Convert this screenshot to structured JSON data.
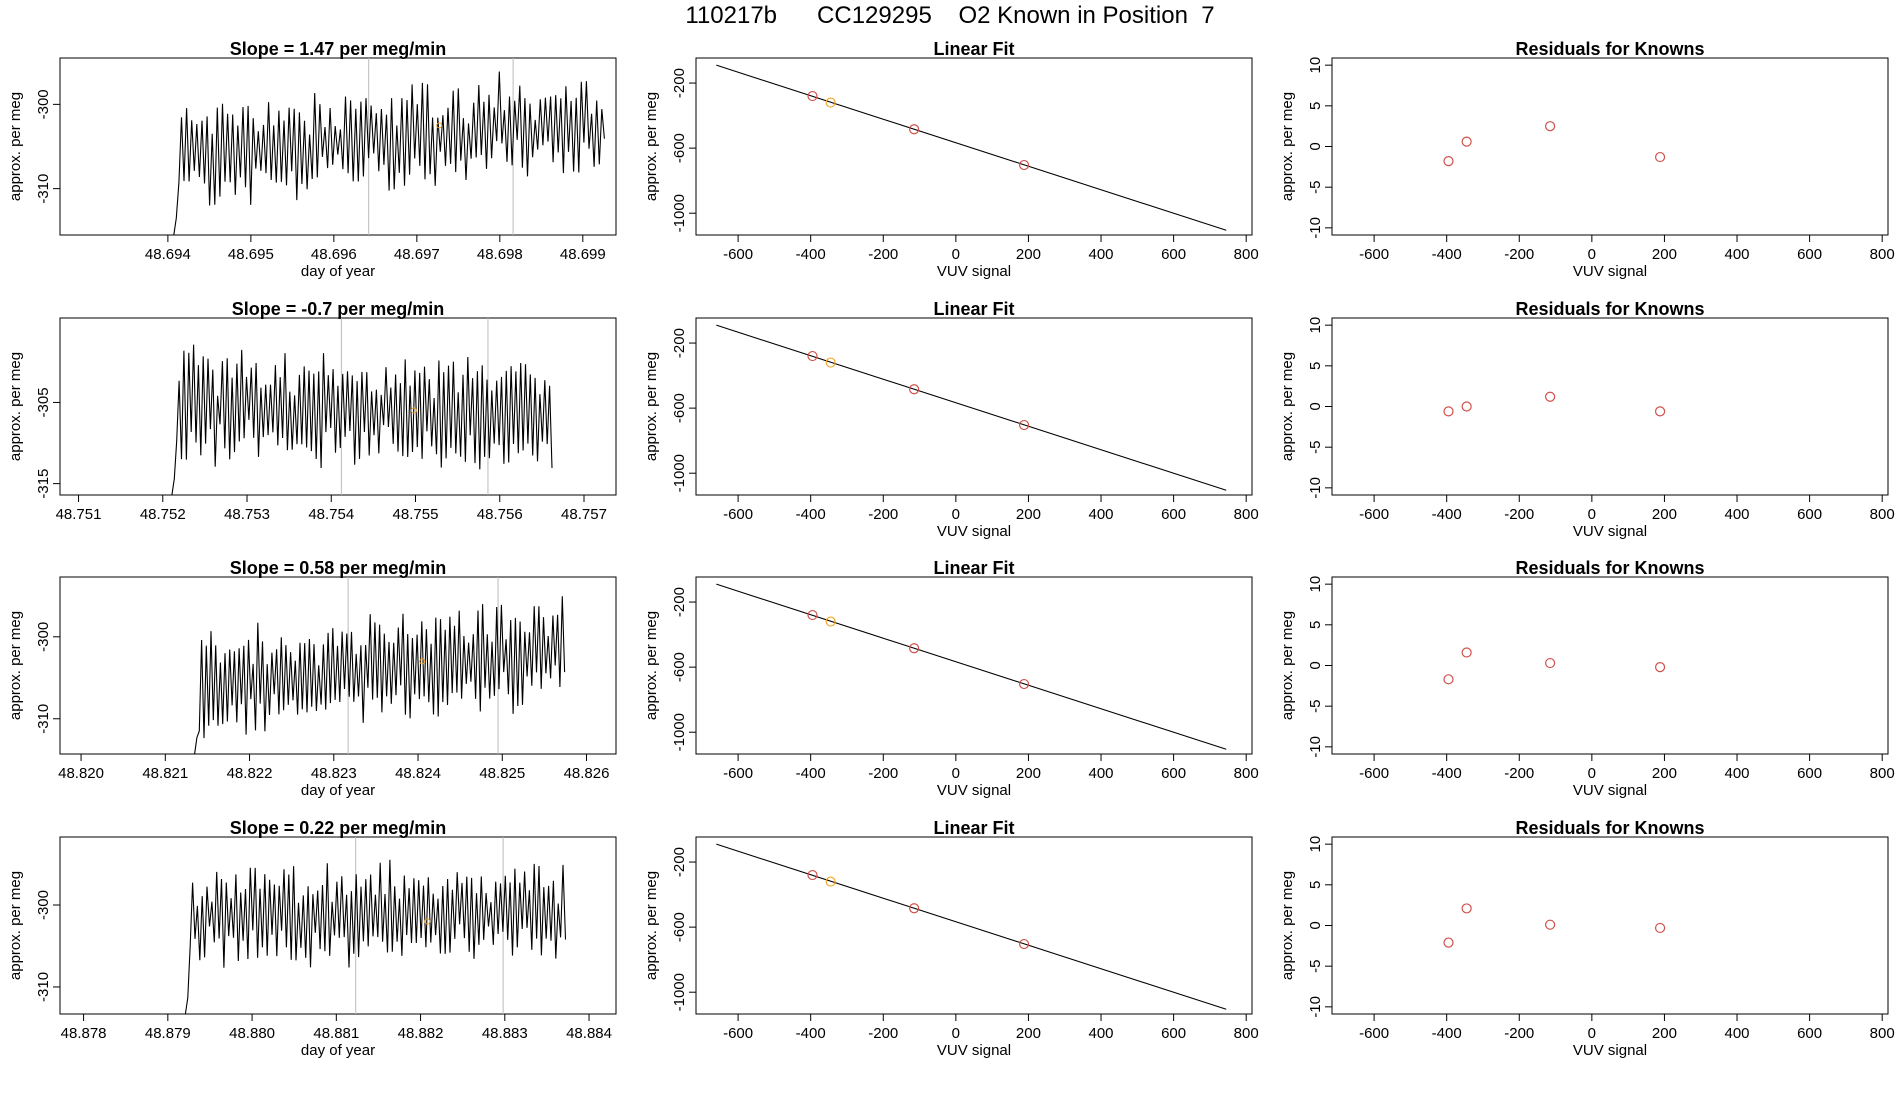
{
  "figure": {
    "title": "110217b      CC129295    O2 Known in Position  7"
  },
  "chart_data": [
    {
      "panel": "timeseries",
      "row": 1,
      "type": "line",
      "title": "Slope =  1.47  per meg/min",
      "xlabel": "day of year",
      "ylabel": "approx. per meg",
      "xlim": [
        48.6927,
        48.6994
      ],
      "ylim": [
        -315.5,
        -294.5
      ],
      "xticks": [
        48.694,
        48.695,
        48.696,
        48.697,
        48.698,
        48.699
      ],
      "xtick_labels": [
        "48.694",
        "48.695",
        "48.696",
        "48.697",
        "48.698",
        "48.699"
      ],
      "yticks": [
        -300,
        -310
      ],
      "ytick_labels": [
        "-300",
        "-310"
      ],
      "vlines": [
        48.69642,
        48.69816
      ],
      "highlight": {
        "x": 48.69727,
        "y": -302.5,
        "color": "#f5a623"
      },
      "series": [
        {
          "color": "#000000",
          "start": 48.69404,
          "end": 48.69926,
          "n": 170,
          "base": -306.0,
          "trend": 4.0,
          "amp": 5.5,
          "seed": 11
        }
      ]
    },
    {
      "panel": "fit",
      "row": 1,
      "type": "scatter",
      "title": "Linear Fit",
      "xlabel": "VUV signal",
      "ylabel": "approx. per meg",
      "xlim": [
        -716,
        816
      ],
      "ylim": [
        -1134,
        -46
      ],
      "xticks": [
        -600,
        -400,
        -200,
        0,
        200,
        400,
        600,
        800
      ],
      "xtick_labels": [
        "-600",
        "-400",
        "-200",
        "0",
        "200",
        "400",
        "600",
        "800"
      ],
      "yticks": [
        -200,
        -600,
        -1000
      ],
      "ytick_labels": [
        "-200",
        "-600",
        "-1000"
      ],
      "line": {
        "x": [
          -660,
          745
        ],
        "y": [
          -90,
          -1105
        ]
      },
      "points": [
        {
          "x": -395,
          "y": -280,
          "color": "#d0504a"
        },
        {
          "x": -345,
          "y": -320,
          "color": "#f5a623"
        },
        {
          "x": -115,
          "y": -484,
          "color": "#d0504a"
        },
        {
          "x": 188,
          "y": -704,
          "color": "#d0504a"
        }
      ]
    },
    {
      "panel": "residuals",
      "row": 1,
      "type": "scatter",
      "title": "Residuals for Knowns",
      "xlabel": "VUV signal",
      "ylabel": "approx. per meg",
      "xlim": [
        -716,
        816
      ],
      "ylim": [
        -10.88,
        10.88
      ],
      "xticks": [
        -600,
        -400,
        -200,
        0,
        200,
        400,
        600,
        800
      ],
      "xtick_labels": [
        "-600",
        "-400",
        "-200",
        "0",
        "200",
        "400",
        "600",
        "800"
      ],
      "yticks": [
        -10,
        -5,
        0,
        5,
        10
      ],
      "ytick_labels": [
        "-10",
        "-5",
        "0",
        "5",
        "10"
      ],
      "points": [
        {
          "x": -395,
          "y": -1.8,
          "color": "#d0504a"
        },
        {
          "x": -345,
          "y": 0.6,
          "color": "#d0504a"
        },
        {
          "x": -115,
          "y": 2.5,
          "color": "#d0504a"
        },
        {
          "x": 188,
          "y": -1.3,
          "color": "#d0504a"
        }
      ]
    },
    {
      "panel": "timeseries",
      "row": 2,
      "type": "line",
      "title": "Slope =  -0.7  per meg/min",
      "xlabel": "",
      "ylabel": "approx. per meg",
      "xlim": [
        48.75078,
        48.75738
      ],
      "ylim": [
        -316.4,
        -294.6
      ],
      "xticks": [
        48.751,
        48.752,
        48.753,
        48.754,
        48.755,
        48.756,
        48.757
      ],
      "xtick_labels": [
        "48.751",
        "48.752",
        "48.753",
        "48.754",
        "48.755",
        "48.756",
        "48.757"
      ],
      "yticks": [
        -305,
        -315
      ],
      "ytick_labels": [
        "-305",
        "-315"
      ],
      "vlines": [
        48.75412,
        48.75586
      ],
      "highlight": {
        "x": 48.75498,
        "y": -306.0,
        "color": "#f5a623"
      },
      "series": [
        {
          "color": "#000000",
          "start": 48.75208,
          "end": 48.75662,
          "n": 160,
          "base": -305.5,
          "trend": -1.0,
          "amp": 6.5,
          "seed": 23
        }
      ]
    },
    {
      "panel": "fit",
      "row": 2,
      "type": "scatter",
      "title": "Linear Fit",
      "xlabel": "VUV signal",
      "ylabel": "approx. per meg",
      "xlim": [
        -716,
        816
      ],
      "ylim": [
        -1134,
        -46
      ],
      "xticks": [
        -600,
        -400,
        -200,
        0,
        200,
        400,
        600,
        800
      ],
      "xtick_labels": [
        "-600",
        "-400",
        "-200",
        "0",
        "200",
        "400",
        "600",
        "800"
      ],
      "yticks": [
        -200,
        -600,
        -1000
      ],
      "ytick_labels": [
        "-200",
        "-600",
        "-1000"
      ],
      "line": {
        "x": [
          -660,
          745
        ],
        "y": [
          -90,
          -1105
        ]
      },
      "points": [
        {
          "x": -395,
          "y": -280,
          "color": "#d0504a"
        },
        {
          "x": -345,
          "y": -320,
          "color": "#f5a623"
        },
        {
          "x": -115,
          "y": -484,
          "color": "#d0504a"
        },
        {
          "x": 188,
          "y": -704,
          "color": "#d0504a"
        }
      ]
    },
    {
      "panel": "residuals",
      "row": 2,
      "type": "scatter",
      "title": "Residuals for Knowns",
      "xlabel": "VUV signal",
      "ylabel": "approx. per meg",
      "xlim": [
        -716,
        816
      ],
      "ylim": [
        -10.88,
        10.88
      ],
      "xticks": [
        -600,
        -400,
        -200,
        0,
        200,
        400,
        600,
        800
      ],
      "xtick_labels": [
        "-600",
        "-400",
        "-200",
        "0",
        "200",
        "400",
        "600",
        "800"
      ],
      "yticks": [
        -10,
        -5,
        0,
        5,
        10
      ],
      "ytick_labels": [
        "-10",
        "-5",
        "0",
        "5",
        "10"
      ],
      "points": [
        {
          "x": -395,
          "y": -0.6,
          "color": "#d0504a"
        },
        {
          "x": -345,
          "y": 0.0,
          "color": "#d0504a"
        },
        {
          "x": -115,
          "y": 1.2,
          "color": "#d0504a"
        },
        {
          "x": 188,
          "y": -0.6,
          "color": "#d0504a"
        }
      ]
    },
    {
      "panel": "timeseries",
      "row": 3,
      "type": "line",
      "title": "Slope =  0.58  per meg/min",
      "xlabel": "day of year",
      "ylabel": "approx. per meg",
      "xlim": [
        48.81975,
        48.82635
      ],
      "ylim": [
        -314.3,
        -292.7
      ],
      "xticks": [
        48.82,
        48.821,
        48.822,
        48.823,
        48.824,
        48.825,
        48.826
      ],
      "xtick_labels": [
        "48.820",
        "48.821",
        "48.822",
        "48.823",
        "48.824",
        "48.825",
        "48.826"
      ],
      "yticks": [
        -300,
        -310
      ],
      "ytick_labels": [
        "-300",
        "-310"
      ],
      "vlines": [
        48.82317,
        48.82495
      ],
      "highlight": {
        "x": 48.82405,
        "y": -303.0,
        "color": "#f5a623"
      },
      "series": [
        {
          "color": "#000000",
          "start": 48.82132,
          "end": 48.82574,
          "n": 160,
          "base": -306.5,
          "trend": 5.0,
          "amp": 6.0,
          "seed": 37
        }
      ]
    },
    {
      "panel": "fit",
      "row": 3,
      "type": "scatter",
      "title": "Linear Fit",
      "xlabel": "VUV signal",
      "ylabel": "approx. per meg",
      "xlim": [
        -716,
        816
      ],
      "ylim": [
        -1134,
        -46
      ],
      "xticks": [
        -600,
        -400,
        -200,
        0,
        200,
        400,
        600,
        800
      ],
      "xtick_labels": [
        "-600",
        "-400",
        "-200",
        "0",
        "200",
        "400",
        "600",
        "800"
      ],
      "yticks": [
        -200,
        -600,
        -1000
      ],
      "ytick_labels": [
        "-200",
        "-600",
        "-1000"
      ],
      "line": {
        "x": [
          -660,
          745
        ],
        "y": [
          -90,
          -1105
        ]
      },
      "points": [
        {
          "x": -395,
          "y": -280,
          "color": "#d0504a"
        },
        {
          "x": -345,
          "y": -320,
          "color": "#f5a623"
        },
        {
          "x": -115,
          "y": -484,
          "color": "#d0504a"
        },
        {
          "x": 188,
          "y": -704,
          "color": "#d0504a"
        }
      ]
    },
    {
      "panel": "residuals",
      "row": 3,
      "type": "scatter",
      "title": "Residuals for Knowns",
      "xlabel": "VUV signal",
      "ylabel": "approx. per meg",
      "xlim": [
        -716,
        816
      ],
      "ylim": [
        -10.88,
        10.88
      ],
      "xticks": [
        -600,
        -400,
        -200,
        0,
        200,
        400,
        600,
        800
      ],
      "xtick_labels": [
        "-600",
        "-400",
        "-200",
        "0",
        "200",
        "400",
        "600",
        "800"
      ],
      "yticks": [
        -10,
        -5,
        0,
        5,
        10
      ],
      "ytick_labels": [
        "-10",
        "-5",
        "0",
        "5",
        "10"
      ],
      "points": [
        {
          "x": -395,
          "y": -1.7,
          "color": "#d0504a"
        },
        {
          "x": -345,
          "y": 1.6,
          "color": "#d0504a"
        },
        {
          "x": -115,
          "y": 0.3,
          "color": "#d0504a"
        },
        {
          "x": 188,
          "y": -0.2,
          "color": "#d0504a"
        }
      ]
    },
    {
      "panel": "timeseries",
      "row": 4,
      "type": "line",
      "title": "Slope =  0.22  per meg/min",
      "xlabel": "day of year",
      "ylabel": "approx. per meg",
      "xlim": [
        48.87772,
        48.88432
      ],
      "ylim": [
        -313.3,
        -291.7
      ],
      "xticks": [
        48.878,
        48.879,
        48.88,
        48.881,
        48.882,
        48.883,
        48.884
      ],
      "xtick_labels": [
        "48.878",
        "48.879",
        "48.880",
        "48.881",
        "48.882",
        "48.883",
        "48.884"
      ],
      "yticks": [
        -300,
        -310
      ],
      "ytick_labels": [
        "-300",
        "-310"
      ],
      "vlines": [
        48.88123,
        48.88298
      ],
      "highlight": {
        "x": 48.88208,
        "y": -302.0,
        "color": "#f5a623"
      },
      "series": [
        {
          "color": "#000000",
          "start": 48.87918,
          "end": 48.88372,
          "n": 160,
          "base": -301.5,
          "trend": 0.5,
          "amp": 5.5,
          "seed": 53
        }
      ]
    },
    {
      "panel": "fit",
      "row": 4,
      "type": "scatter",
      "title": "Linear Fit",
      "xlabel": "VUV signal",
      "ylabel": "approx. per meg",
      "xlim": [
        -716,
        816
      ],
      "ylim": [
        -1134,
        -46
      ],
      "xticks": [
        -600,
        -400,
        -200,
        0,
        200,
        400,
        600,
        800
      ],
      "xtick_labels": [
        "-600",
        "-400",
        "-200",
        "0",
        "200",
        "400",
        "600",
        "800"
      ],
      "yticks": [
        -200,
        -600,
        -1000
      ],
      "ytick_labels": [
        "-200",
        "-600",
        "-1000"
      ],
      "line": {
        "x": [
          -660,
          745
        ],
        "y": [
          -90,
          -1105
        ]
      },
      "points": [
        {
          "x": -395,
          "y": -280,
          "color": "#d0504a"
        },
        {
          "x": -345,
          "y": -320,
          "color": "#f5a623"
        },
        {
          "x": -115,
          "y": -484,
          "color": "#d0504a"
        },
        {
          "x": 188,
          "y": -704,
          "color": "#d0504a"
        }
      ]
    },
    {
      "panel": "residuals",
      "row": 4,
      "type": "scatter",
      "title": "Residuals for Knowns",
      "xlabel": "VUV signal",
      "ylabel": "approx. per meg",
      "xlim": [
        -716,
        816
      ],
      "ylim": [
        -10.88,
        10.88
      ],
      "xticks": [
        -600,
        -400,
        -200,
        0,
        200,
        400,
        600,
        800
      ],
      "xtick_labels": [
        "-600",
        "-400",
        "-200",
        "0",
        "200",
        "400",
        "600",
        "800"
      ],
      "yticks": [
        -10,
        -5,
        0,
        5,
        10
      ],
      "ytick_labels": [
        "-10",
        "-5",
        "0",
        "5",
        "10"
      ],
      "points": [
        {
          "x": -395,
          "y": -2.1,
          "color": "#d0504a"
        },
        {
          "x": -345,
          "y": 2.1,
          "color": "#d0504a"
        },
        {
          "x": -115,
          "y": 0.1,
          "color": "#d0504a"
        },
        {
          "x": 188,
          "y": -0.3,
          "color": "#d0504a"
        }
      ]
    }
  ]
}
